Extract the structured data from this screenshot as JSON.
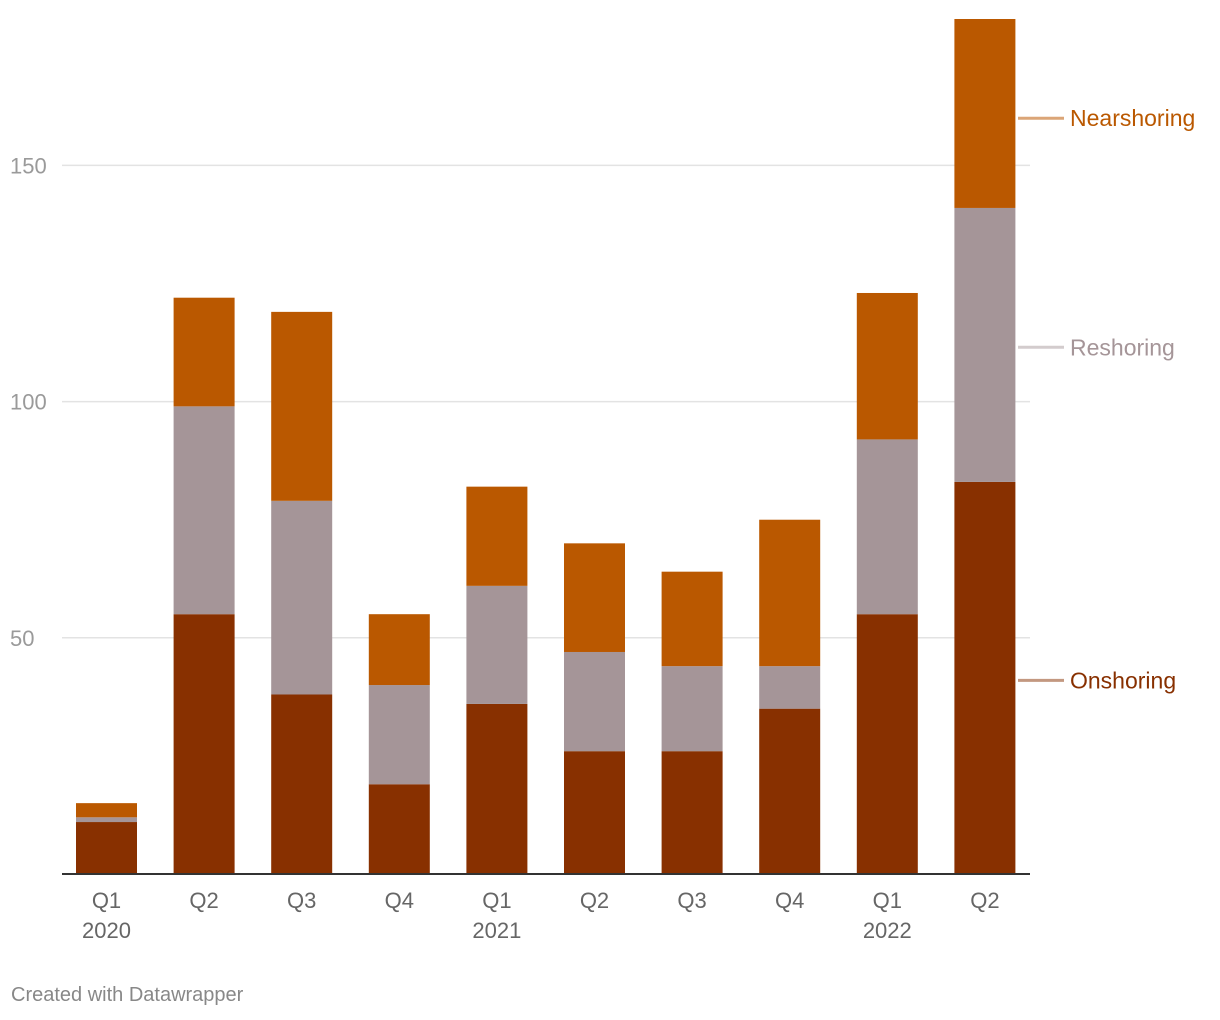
{
  "chart_data": {
    "type": "bar",
    "stacked": true,
    "categories": [
      "Q1 2020",
      "Q2",
      "Q3",
      "Q4",
      "Q1 2021",
      "Q2",
      "Q3",
      "Q4",
      "Q1 2022",
      "Q2"
    ],
    "x_labels": [
      {
        "line1": "Q1",
        "line2": "2020"
      },
      {
        "line1": "Q2",
        "line2": ""
      },
      {
        "line1": "Q3",
        "line2": ""
      },
      {
        "line1": "Q4",
        "line2": ""
      },
      {
        "line1": "Q1",
        "line2": "2021"
      },
      {
        "line1": "Q2",
        "line2": ""
      },
      {
        "line1": "Q3",
        "line2": ""
      },
      {
        "line1": "Q4",
        "line2": ""
      },
      {
        "line1": "Q1",
        "line2": "2022"
      },
      {
        "line1": "Q2",
        "line2": ""
      }
    ],
    "series": [
      {
        "name": "Onshoring",
        "color": "#883000",
        "values": [
          11,
          55,
          38,
          19,
          36,
          26,
          26,
          35,
          55,
          83
        ]
      },
      {
        "name": "Reshoring",
        "color": "#a59598",
        "values": [
          1,
          44,
          41,
          21,
          25,
          21,
          18,
          9,
          37,
          58
        ]
      },
      {
        "name": "Nearshoring",
        "color": "#ba5800",
        "values": [
          3,
          23,
          40,
          15,
          21,
          23,
          20,
          31,
          31,
          40
        ]
      }
    ],
    "legend": [
      {
        "name": "Nearshoring",
        "text_color": "#ba5800",
        "line_color": "#dba577",
        "at_value": 160
      },
      {
        "name": "Reshoring",
        "text_color": "#a59598",
        "line_color": "#d3cccd",
        "at_value": 111.5
      },
      {
        "name": "Onshoring",
        "text_color": "#883000",
        "line_color": "#c39880",
        "at_value": 41
      }
    ],
    "yticks": [
      50,
      100,
      150
    ],
    "ylim": [
      0,
      181
    ],
    "title": "",
    "xlabel": "",
    "ylabel": ""
  },
  "footer": "Created with Datawrapper"
}
